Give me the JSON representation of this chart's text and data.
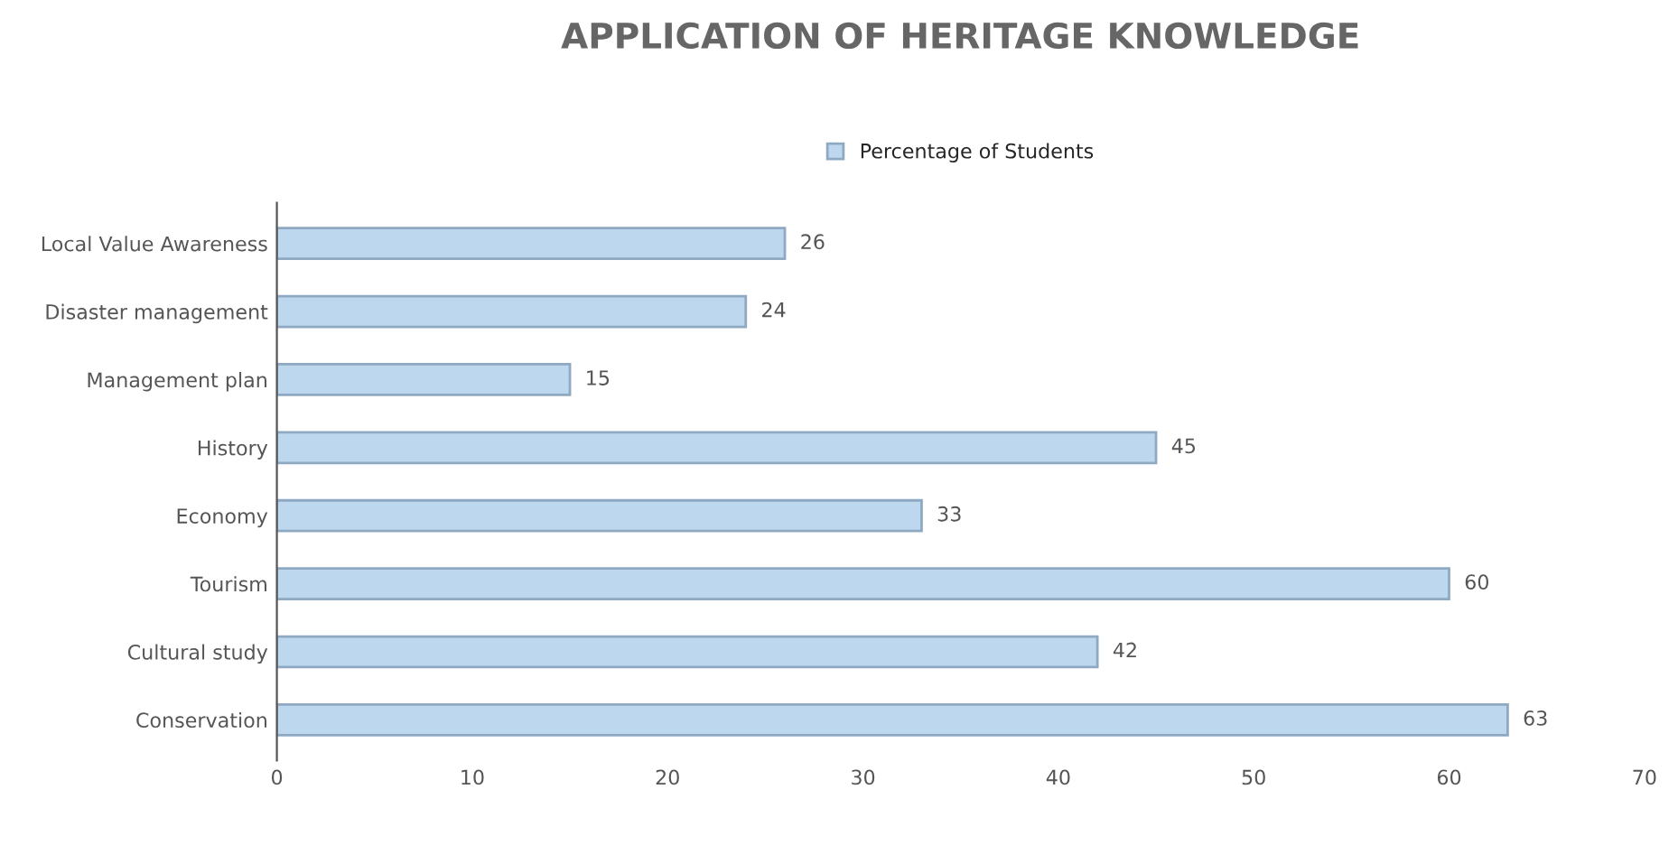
{
  "chart_data": {
    "type": "bar",
    "orientation": "horizontal",
    "title": "APPLICATION OF HERITAGE KNOWLEDGE",
    "categories": [
      "Local Value Awareness",
      "Disaster management",
      "Management plan",
      "History",
      "Economy",
      "Tourism",
      "Cultural study",
      "Conservation"
    ],
    "series": [
      {
        "name": "Percentage of Students",
        "color": "#bdd7ee",
        "values": [
          26,
          24,
          15,
          45,
          33,
          60,
          42,
          63
        ]
      }
    ],
    "xlim": [
      0,
      70
    ],
    "xticks": [
      0,
      10,
      20,
      30,
      40,
      50,
      60,
      70
    ],
    "data_labels": true,
    "legend": "top",
    "grid": false
  }
}
